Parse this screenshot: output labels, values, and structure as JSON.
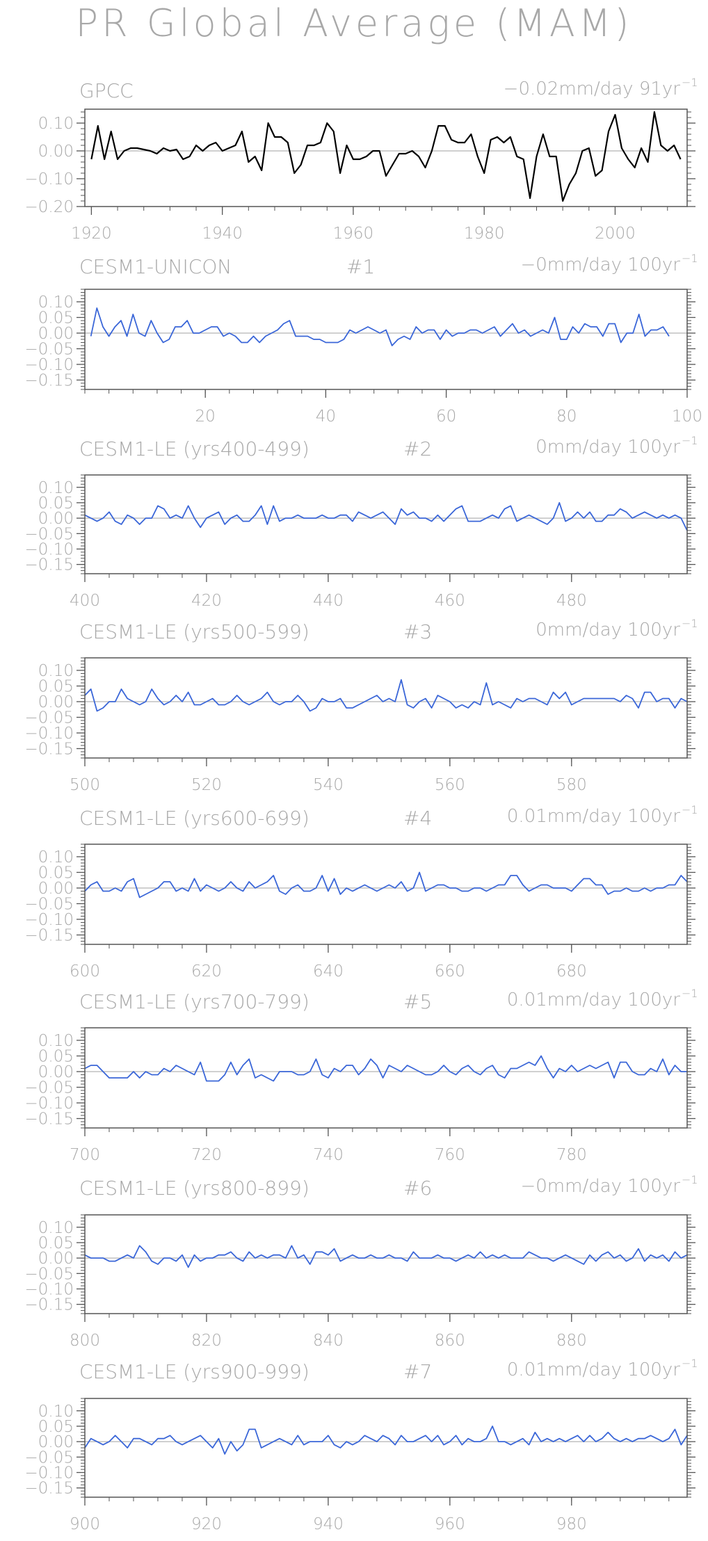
{
  "title": "PR Global Average (MAM)",
  "colors": {
    "obs_line": "#000000",
    "model_line": "#3a66d8",
    "zero_line": "#b4b4b4",
    "frame": "#555555",
    "text": "#a8a8a8"
  },
  "chart_data": [
    {
      "type": "line",
      "name": "GPCC",
      "member": "",
      "trend": "−0.02mm/day 91yr",
      "trend_exp": "−1",
      "series_color": "obs",
      "x_start": 1920,
      "xlim": [
        1919,
        2011
      ],
      "ylim": [
        -0.2,
        0.15
      ],
      "xticks": [
        1920,
        1940,
        1960,
        1980,
        2000
      ],
      "xtick_labels": [
        "1920",
        "1940",
        "1960",
        "1980",
        "2000"
      ],
      "yticks": [
        0.1,
        0.0,
        -0.1,
        -0.2
      ],
      "ytick_labels": [
        "0.10",
        "0.00",
        "−0.10",
        "−0.20"
      ],
      "values": [
        -0.03,
        0.09,
        -0.03,
        0.07,
        -0.03,
        0.0,
        0.01,
        0.01,
        0.005,
        0.0,
        -0.01,
        0.01,
        0.0,
        0.005,
        -0.03,
        -0.02,
        0.02,
        0.0,
        0.02,
        0.03,
        0.0,
        0.01,
        0.02,
        0.07,
        -0.04,
        -0.02,
        -0.07,
        0.1,
        0.05,
        0.05,
        0.03,
        -0.08,
        -0.05,
        0.02,
        0.02,
        0.03,
        0.1,
        0.07,
        -0.08,
        0.02,
        -0.03,
        -0.03,
        -0.02,
        0.0,
        0.0,
        -0.09,
        -0.05,
        -0.01,
        -0.01,
        0.0,
        -0.02,
        -0.06,
        0.0,
        0.09,
        0.09,
        0.04,
        0.03,
        0.03,
        0.06,
        -0.02,
        -0.08,
        0.04,
        0.05,
        0.03,
        0.05,
        -0.02,
        -0.03,
        -0.17,
        -0.02,
        0.06,
        -0.02,
        -0.02,
        -0.18,
        -0.12,
        -0.08,
        0.0,
        0.01,
        -0.09,
        -0.07,
        0.07,
        0.13,
        0.01,
        -0.03,
        -0.06,
        0.01,
        -0.04,
        0.14,
        0.02,
        0.0,
        0.02,
        -0.03
      ]
    },
    {
      "type": "line",
      "name": "CESM1-UNICON",
      "member": "#1",
      "trend": "−0mm/day 100yr",
      "trend_exp": "−1",
      "series_color": "model",
      "x_start": 1,
      "xlim": [
        0,
        100
      ],
      "ylim": [
        -0.18,
        0.14
      ],
      "xticks": [
        20,
        40,
        60,
        80,
        100
      ],
      "xtick_labels": [
        "20",
        "40",
        "60",
        "80",
        "100"
      ],
      "yticks": [
        0.1,
        0.05,
        0.0,
        -0.05,
        -0.1,
        -0.15
      ],
      "ytick_labels": [
        "0.10",
        "0.05",
        "0.00",
        "−0.05",
        "−0.10",
        "−0.15"
      ],
      "values": [
        -0.01,
        0.08,
        0.02,
        -0.01,
        0.02,
        0.04,
        -0.01,
        0.06,
        0.0,
        -0.01,
        0.04,
        0.0,
        -0.03,
        -0.02,
        0.02,
        0.02,
        0.04,
        0.0,
        0.0,
        0.01,
        0.02,
        0.02,
        -0.01,
        0.0,
        -0.01,
        -0.03,
        -0.03,
        -0.01,
        -0.03,
        -0.01,
        0.0,
        0.01,
        0.03,
        0.04,
        -0.01,
        -0.01,
        -0.01,
        -0.02,
        -0.02,
        -0.03,
        -0.03,
        -0.03,
        -0.02,
        0.01,
        0.0,
        0.01,
        0.02,
        0.01,
        0.0,
        0.01,
        -0.04,
        -0.02,
        -0.01,
        -0.02,
        0.02,
        0.0,
        0.01,
        0.01,
        -0.02,
        0.01,
        -0.01,
        0.0,
        0.0,
        0.01,
        0.01,
        0.0,
        0.01,
        0.02,
        -0.01,
        0.01,
        0.03,
        0.0,
        0.01,
        -0.01,
        0.0,
        0.01,
        0.0,
        0.05,
        -0.02,
        -0.02,
        0.02,
        0.0,
        0.03,
        0.02,
        0.02,
        -0.01,
        0.03,
        0.03,
        -0.03,
        0.0,
        0.0,
        0.06,
        -0.01,
        0.01,
        0.01,
        0.02,
        -0.01
      ]
    },
    {
      "type": "line",
      "name": "CESM1-LE (yrs400-499)",
      "member": "#2",
      "trend": "0mm/day 100yr",
      "trend_exp": "−1",
      "series_color": "model",
      "x_start": 400,
      "xlim": [
        400,
        499
      ],
      "ylim": [
        -0.18,
        0.14
      ],
      "xticks": [
        400,
        420,
        440,
        460,
        480
      ],
      "xtick_labels": [
        "400",
        "420",
        "440",
        "460",
        "480"
      ],
      "yticks": [
        0.1,
        0.05,
        0.0,
        -0.05,
        -0.1,
        -0.15
      ],
      "ytick_labels": [
        "0.10",
        "0.05",
        "0.00",
        "−0.05",
        "−0.10",
        "−0.15"
      ],
      "values": [
        0.01,
        0.0,
        -0.01,
        0.0,
        0.02,
        -0.01,
        -0.02,
        0.01,
        0.0,
        -0.02,
        0.0,
        0.0,
        0.04,
        0.03,
        0.0,
        0.01,
        0.0,
        0.04,
        0.0,
        -0.03,
        0.0,
        0.01,
        0.02,
        -0.02,
        0.0,
        0.01,
        -0.01,
        -0.01,
        0.01,
        0.04,
        -0.02,
        0.04,
        -0.01,
        0.0,
        0.0,
        0.01,
        0.0,
        0.0,
        0.0,
        0.01,
        0.0,
        0.0,
        0.01,
        0.01,
        -0.01,
        0.02,
        0.01,
        0.0,
        0.01,
        0.02,
        0.0,
        -0.02,
        0.03,
        0.01,
        0.02,
        0.0,
        0.0,
        -0.01,
        0.01,
        -0.01,
        0.01,
        0.03,
        0.04,
        -0.01,
        -0.01,
        -0.01,
        0.0,
        0.01,
        0.0,
        0.03,
        0.04,
        -0.01,
        0.0,
        0.01,
        0.0,
        -0.01,
        -0.02,
        0.0,
        0.05,
        -0.01,
        0.0,
        0.02,
        0.0,
        0.02,
        -0.01,
        -0.01,
        0.01,
        0.01,
        0.03,
        0.02,
        0.0,
        0.01,
        0.02,
        0.01,
        0.0,
        0.01,
        0.0,
        0.01,
        0.0,
        -0.04
      ]
    },
    {
      "type": "line",
      "name": "CESM1-LE (yrs500-599)",
      "member": "#3",
      "trend": "0mm/day 100yr",
      "trend_exp": "−1",
      "series_color": "model",
      "x_start": 500,
      "xlim": [
        500,
        599
      ],
      "ylim": [
        -0.18,
        0.14
      ],
      "xticks": [
        500,
        520,
        540,
        560,
        580
      ],
      "xtick_labels": [
        "500",
        "520",
        "540",
        "560",
        "580"
      ],
      "yticks": [
        0.1,
        0.05,
        0.0,
        -0.05,
        -0.1,
        -0.15
      ],
      "ytick_labels": [
        "0.10",
        "0.05",
        "0.00",
        "−0.05",
        "−0.10",
        "−0.15"
      ],
      "values": [
        0.02,
        0.04,
        -0.03,
        -0.02,
        0.0,
        0.0,
        0.04,
        0.01,
        0.0,
        -0.01,
        0.0,
        0.04,
        0.01,
        -0.01,
        0.0,
        0.02,
        0.0,
        0.03,
        -0.01,
        -0.01,
        0.0,
        0.01,
        -0.01,
        -0.01,
        0.0,
        0.02,
        0.0,
        -0.01,
        0.0,
        0.01,
        0.03,
        0.0,
        -0.01,
        0.0,
        0.0,
        0.02,
        0.0,
        -0.03,
        -0.02,
        0.01,
        0.0,
        0.0,
        0.01,
        -0.02,
        -0.02,
        -0.01,
        0.0,
        0.01,
        0.02,
        0.0,
        0.01,
        0.0,
        0.07,
        -0.01,
        -0.02,
        0.0,
        0.01,
        -0.02,
        0.02,
        0.01,
        0.0,
        -0.02,
        -0.01,
        -0.02,
        0.0,
        -0.01,
        0.06,
        -0.01,
        0.0,
        -0.01,
        -0.02,
        0.01,
        0.0,
        0.01,
        0.01,
        0.0,
        -0.01,
        0.03,
        0.01,
        0.03,
        -0.01,
        0.0,
        0.01,
        0.01,
        0.01,
        0.01,
        0.01,
        0.01,
        0.0,
        0.02,
        0.01,
        -0.02,
        0.03,
        0.03,
        0.0,
        0.01,
        0.01,
        -0.02,
        0.01,
        0.0
      ]
    },
    {
      "type": "line",
      "name": "CESM1-LE (yrs600-699)",
      "member": "#4",
      "trend": "0.01mm/day 100yr",
      "trend_exp": "−1",
      "series_color": "model",
      "x_start": 600,
      "xlim": [
        600,
        699
      ],
      "ylim": [
        -0.18,
        0.14
      ],
      "xticks": [
        600,
        620,
        640,
        660,
        680
      ],
      "xtick_labels": [
        "600",
        "620",
        "640",
        "660",
        "680"
      ],
      "yticks": [
        0.1,
        0.05,
        0.0,
        -0.05,
        -0.1,
        -0.15
      ],
      "ytick_labels": [
        "0.10",
        "0.05",
        "0.00",
        "−0.05",
        "−0.10",
        "−0.15"
      ],
      "values": [
        -0.01,
        0.01,
        0.02,
        -0.01,
        -0.01,
        0.0,
        -0.01,
        0.02,
        0.03,
        -0.03,
        -0.02,
        -0.01,
        0.0,
        0.02,
        0.02,
        -0.01,
        0.0,
        -0.01,
        0.03,
        -0.01,
        0.01,
        0.0,
        -0.01,
        0.0,
        0.02,
        0.0,
        -0.01,
        0.02,
        0.0,
        0.01,
        0.02,
        0.04,
        -0.01,
        -0.02,
        0.0,
        0.01,
        -0.01,
        -0.01,
        0.0,
        0.04,
        -0.01,
        0.03,
        -0.02,
        0.0,
        -0.01,
        0.0,
        0.01,
        0.0,
        -0.01,
        0.0,
        0.01,
        0.0,
        0.02,
        -0.01,
        0.0,
        0.05,
        -0.01,
        0.0,
        0.01,
        0.01,
        0.0,
        0.0,
        -0.01,
        -0.01,
        0.0,
        0.0,
        -0.01,
        0.0,
        0.01,
        0.01,
        0.04,
        0.04,
        0.01,
        -0.01,
        0.0,
        0.01,
        0.01,
        0.0,
        0.0,
        0.0,
        -0.01,
        0.01,
        0.03,
        0.03,
        0.01,
        0.01,
        -0.02,
        -0.01,
        -0.01,
        0.0,
        -0.01,
        -0.01,
        0.0,
        -0.01,
        0.0,
        0.0,
        0.01,
        0.01,
        0.04,
        0.02
      ]
    },
    {
      "type": "line",
      "name": "CESM1-LE (yrs700-799)",
      "member": "#5",
      "trend": "0.01mm/day 100yr",
      "trend_exp": "−1",
      "series_color": "model",
      "x_start": 700,
      "xlim": [
        700,
        799
      ],
      "ylim": [
        -0.18,
        0.14
      ],
      "xticks": [
        700,
        720,
        740,
        760,
        780
      ],
      "xtick_labels": [
        "700",
        "720",
        "740",
        "760",
        "780"
      ],
      "yticks": [
        0.1,
        0.05,
        0.0,
        -0.05,
        -0.1,
        -0.15
      ],
      "ytick_labels": [
        "0.10",
        "0.05",
        "0.00",
        "−0.05",
        "−0.10",
        "−0.15"
      ],
      "values": [
        0.01,
        0.02,
        0.02,
        0.0,
        -0.02,
        -0.02,
        -0.02,
        -0.02,
        0.0,
        -0.02,
        0.0,
        -0.01,
        -0.01,
        0.01,
        0.0,
        0.02,
        0.01,
        0.0,
        -0.01,
        0.03,
        -0.03,
        -0.03,
        -0.03,
        -0.01,
        0.03,
        -0.01,
        0.02,
        0.04,
        -0.02,
        -0.01,
        -0.02,
        -0.03,
        0.0,
        0.0,
        0.0,
        -0.01,
        -0.01,
        0.0,
        0.04,
        -0.01,
        -0.02,
        0.01,
        0.0,
        0.02,
        0.02,
        -0.01,
        0.01,
        0.04,
        0.02,
        -0.02,
        0.02,
        0.01,
        0.0,
        0.02,
        0.01,
        0.0,
        -0.01,
        -0.01,
        0.0,
        0.02,
        0.0,
        -0.01,
        0.01,
        0.02,
        0.0,
        -0.01,
        0.01,
        0.02,
        -0.01,
        -0.02,
        0.01,
        0.01,
        0.02,
        0.03,
        0.02,
        0.05,
        0.01,
        -0.02,
        0.01,
        0.0,
        0.02,
        0.0,
        0.01,
        0.02,
        0.01,
        0.02,
        0.03,
        -0.02,
        0.03,
        0.03,
        0.0,
        -0.01,
        -0.01,
        0.01,
        0.0,
        0.04,
        -0.01,
        0.02,
        0.0,
        0.0
      ]
    },
    {
      "type": "line",
      "name": "CESM1-LE (yrs800-899)",
      "member": "#6",
      "trend": "−0mm/day 100yr",
      "trend_exp": "−1",
      "series_color": "model",
      "x_start": 800,
      "xlim": [
        800,
        899
      ],
      "ylim": [
        -0.18,
        0.14
      ],
      "xticks": [
        800,
        820,
        840,
        860,
        880
      ],
      "xtick_labels": [
        "800",
        "820",
        "840",
        "860",
        "880"
      ],
      "yticks": [
        0.1,
        0.05,
        0.0,
        -0.05,
        -0.1,
        -0.15
      ],
      "ytick_labels": [
        "0.10",
        "0.05",
        "0.00",
        "−0.05",
        "−0.10",
        "−0.15"
      ],
      "values": [
        0.01,
        0.0,
        0.0,
        0.0,
        -0.01,
        -0.01,
        0.0,
        0.01,
        0.0,
        0.04,
        0.02,
        -0.01,
        -0.02,
        0.0,
        0.0,
        -0.01,
        0.01,
        -0.03,
        0.01,
        -0.01,
        0.0,
        0.0,
        0.01,
        0.01,
        0.02,
        0.0,
        -0.01,
        0.02,
        0.0,
        0.01,
        0.0,
        0.01,
        0.01,
        0.0,
        0.04,
        0.0,
        0.01,
        -0.02,
        0.02,
        0.02,
        0.01,
        0.03,
        -0.01,
        0.0,
        0.01,
        0.0,
        0.0,
        0.01,
        0.0,
        0.0,
        0.01,
        0.0,
        0.0,
        -0.01,
        0.02,
        0.0,
        0.0,
        0.0,
        0.01,
        0.0,
        0.0,
        -0.01,
        0.0,
        0.01,
        0.0,
        0.02,
        0.0,
        0.01,
        0.0,
        0.01,
        0.0,
        0.0,
        0.0,
        0.02,
        0.01,
        0.0,
        0.0,
        -0.01,
        0.0,
        0.01,
        0.0,
        -0.01,
        -0.02,
        0.01,
        -0.01,
        0.01,
        0.02,
        0.0,
        0.01,
        -0.01,
        0.0,
        0.03,
        -0.01,
        0.01,
        0.0,
        0.01,
        -0.01,
        0.02,
        0.0,
        0.01
      ]
    },
    {
      "type": "line",
      "name": "CESM1-LE (yrs900-999)",
      "member": "#7",
      "trend": "0.01mm/day 100yr",
      "trend_exp": "−1",
      "series_color": "model",
      "x_start": 900,
      "xlim": [
        900,
        999
      ],
      "ylim": [
        -0.18,
        0.14
      ],
      "xticks": [
        900,
        920,
        940,
        960,
        980
      ],
      "xtick_labels": [
        "900",
        "920",
        "940",
        "960",
        "980"
      ],
      "yticks": [
        0.1,
        0.05,
        0.0,
        -0.05,
        -0.1,
        -0.15
      ],
      "ytick_labels": [
        "0.10",
        "0.05",
        "0.00",
        "−0.05",
        "−0.10",
        "−0.15"
      ],
      "values": [
        -0.02,
        0.01,
        0.0,
        -0.01,
        0.0,
        0.02,
        0.0,
        -0.02,
        0.01,
        0.01,
        0.0,
        -0.01,
        0.01,
        0.01,
        0.02,
        0.0,
        -0.01,
        0.0,
        0.01,
        0.02,
        0.0,
        -0.02,
        0.01,
        -0.04,
        0.0,
        -0.03,
        -0.01,
        0.04,
        0.04,
        -0.02,
        -0.01,
        0.0,
        0.01,
        0.0,
        -0.01,
        0.02,
        -0.01,
        0.0,
        0.0,
        0.0,
        0.02,
        -0.01,
        -0.02,
        0.0,
        -0.01,
        0.0,
        0.02,
        0.01,
        0.0,
        0.02,
        0.01,
        -0.01,
        0.02,
        0.0,
        0.0,
        0.01,
        0.02,
        0.0,
        0.02,
        -0.01,
        0.0,
        0.02,
        -0.01,
        0.01,
        0.0,
        0.0,
        0.01,
        0.05,
        0.0,
        0.0,
        -0.01,
        0.0,
        0.01,
        -0.01,
        0.03,
        0.0,
        0.01,
        0.0,
        0.01,
        0.0,
        0.01,
        0.02,
        0.0,
        0.02,
        0.0,
        0.01,
        0.03,
        0.01,
        0.0,
        0.01,
        0.0,
        0.01,
        0.01,
        0.02,
        0.01,
        0.0,
        0.01,
        0.04,
        -0.01,
        0.02
      ]
    }
  ]
}
